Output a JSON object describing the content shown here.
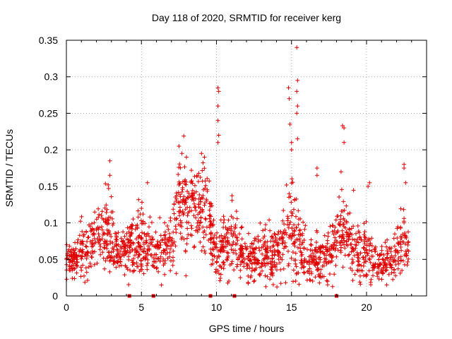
{
  "chart_data": {
    "type": "scatter",
    "title": "Day 118 of 2020, SRMTID for receiver kerg",
    "xlabel": "GPS time / hours",
    "ylabel": "SRMTID / TECUs",
    "xlim": [
      0,
      24
    ],
    "ylim": [
      0,
      0.35
    ],
    "x_ticks": [
      0,
      5,
      10,
      15,
      20
    ],
    "x_tick_labels": [
      "0",
      "5",
      "10",
      "15",
      "20"
    ],
    "y_ticks": [
      0,
      0.05,
      0.1,
      0.15,
      0.2,
      0.25,
      0.3,
      0.35
    ],
    "y_tick_labels": [
      "0",
      "0.05",
      "0.1",
      "0.15",
      "0.2",
      "0.25",
      "0.3",
      "0.35"
    ],
    "grid": true,
    "marker": "+",
    "series_color": "#e00000",
    "bottom_markers_x": [
      4.2,
      5.8,
      9.6,
      11.2,
      18.0
    ],
    "envelope": {
      "times": [
        0,
        0.5,
        1,
        1.5,
        2,
        2.5,
        3,
        3.5,
        4,
        4.5,
        5,
        5.5,
        6,
        6.5,
        7,
        7.5,
        8,
        8.5,
        9,
        9.5,
        10,
        10.5,
        11,
        11.5,
        12,
        12.5,
        13,
        13.5,
        14,
        14.5,
        15,
        15.5,
        16,
        16.5,
        17,
        17.5,
        18,
        18.5,
        19,
        19.5,
        20,
        20.5,
        21,
        21.5,
        22,
        22.5,
        22.8
      ],
      "mean": [
        0.05,
        0.05,
        0.06,
        0.065,
        0.075,
        0.085,
        0.08,
        0.07,
        0.06,
        0.07,
        0.075,
        0.065,
        0.065,
        0.06,
        0.08,
        0.13,
        0.12,
        0.12,
        0.12,
        0.1,
        0.05,
        0.07,
        0.08,
        0.06,
        0.05,
        0.05,
        0.06,
        0.05,
        0.06,
        0.07,
        0.1,
        0.08,
        0.05,
        0.05,
        0.05,
        0.06,
        0.08,
        0.09,
        0.07,
        0.06,
        0.065,
        0.05,
        0.04,
        0.05,
        0.06,
        0.07,
        0.07
      ],
      "spread": [
        0.02,
        0.02,
        0.03,
        0.03,
        0.035,
        0.04,
        0.04,
        0.03,
        0.03,
        0.035,
        0.04,
        0.035,
        0.035,
        0.03,
        0.04,
        0.05,
        0.05,
        0.045,
        0.045,
        0.045,
        0.03,
        0.04,
        0.04,
        0.03,
        0.025,
        0.025,
        0.03,
        0.025,
        0.03,
        0.035,
        0.055,
        0.045,
        0.025,
        0.025,
        0.025,
        0.03,
        0.04,
        0.045,
        0.035,
        0.03,
        0.035,
        0.025,
        0.02,
        0.025,
        0.03,
        0.035,
        0.035
      ]
    },
    "n_points": 1800,
    "peak_points": [
      {
        "x": 2.9,
        "y": 0.185
      },
      {
        "x": 2.9,
        "y": 0.165
      },
      {
        "x": 7.5,
        "y": 0.205
      },
      {
        "x": 7.7,
        "y": 0.195
      },
      {
        "x": 8.0,
        "y": 0.19
      },
      {
        "x": 9.0,
        "y": 0.195
      },
      {
        "x": 9.2,
        "y": 0.19
      },
      {
        "x": 10.1,
        "y": 0.285
      },
      {
        "x": 10.15,
        "y": 0.28
      },
      {
        "x": 10.1,
        "y": 0.26
      },
      {
        "x": 10.1,
        "y": 0.24
      },
      {
        "x": 10.15,
        "y": 0.22
      },
      {
        "x": 10.1,
        "y": 0.21
      },
      {
        "x": 14.8,
        "y": 0.285
      },
      {
        "x": 14.85,
        "y": 0.27
      },
      {
        "x": 14.9,
        "y": 0.235
      },
      {
        "x": 15.0,
        "y": 0.21
      },
      {
        "x": 15.0,
        "y": 0.2
      },
      {
        "x": 15.35,
        "y": 0.34
      },
      {
        "x": 15.4,
        "y": 0.295
      },
      {
        "x": 15.35,
        "y": 0.28
      },
      {
        "x": 15.4,
        "y": 0.26
      },
      {
        "x": 15.35,
        "y": 0.25
      },
      {
        "x": 15.4,
        "y": 0.215
      },
      {
        "x": 18.4,
        "y": 0.233
      },
      {
        "x": 18.5,
        "y": 0.23
      },
      {
        "x": 18.5,
        "y": 0.21
      },
      {
        "x": 18.3,
        "y": 0.17
      },
      {
        "x": 16.7,
        "y": 0.175
      },
      {
        "x": 16.7,
        "y": 0.165
      },
      {
        "x": 22.5,
        "y": 0.18
      },
      {
        "x": 22.5,
        "y": 0.175
      },
      {
        "x": 22.6,
        "y": 0.155
      },
      {
        "x": 5.4,
        "y": 0.155
      },
      {
        "x": 20.1,
        "y": 0.15
      },
      {
        "x": 20.2,
        "y": 0.155
      }
    ]
  }
}
